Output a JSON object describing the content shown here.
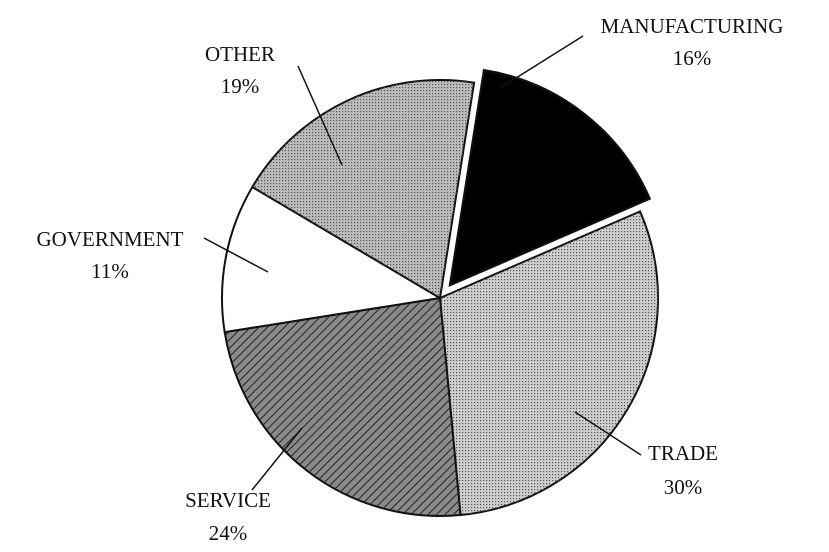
{
  "chart_data": {
    "type": "pie",
    "categories": [
      "MANUFACTURING",
      "TRADE",
      "SERVICE",
      "GOVERNMENT",
      "OTHER"
    ],
    "values": [
      16,
      30,
      24,
      11,
      19
    ],
    "value_labels": [
      "16%",
      "30%",
      "24%",
      "11%",
      "19%"
    ],
    "colors": [
      "#000000",
      "#cfcfcf",
      "#8a8a8a",
      "#ffffff",
      "#bdbdbd"
    ],
    "explode": [
      true,
      false,
      false,
      false,
      false
    ]
  }
}
